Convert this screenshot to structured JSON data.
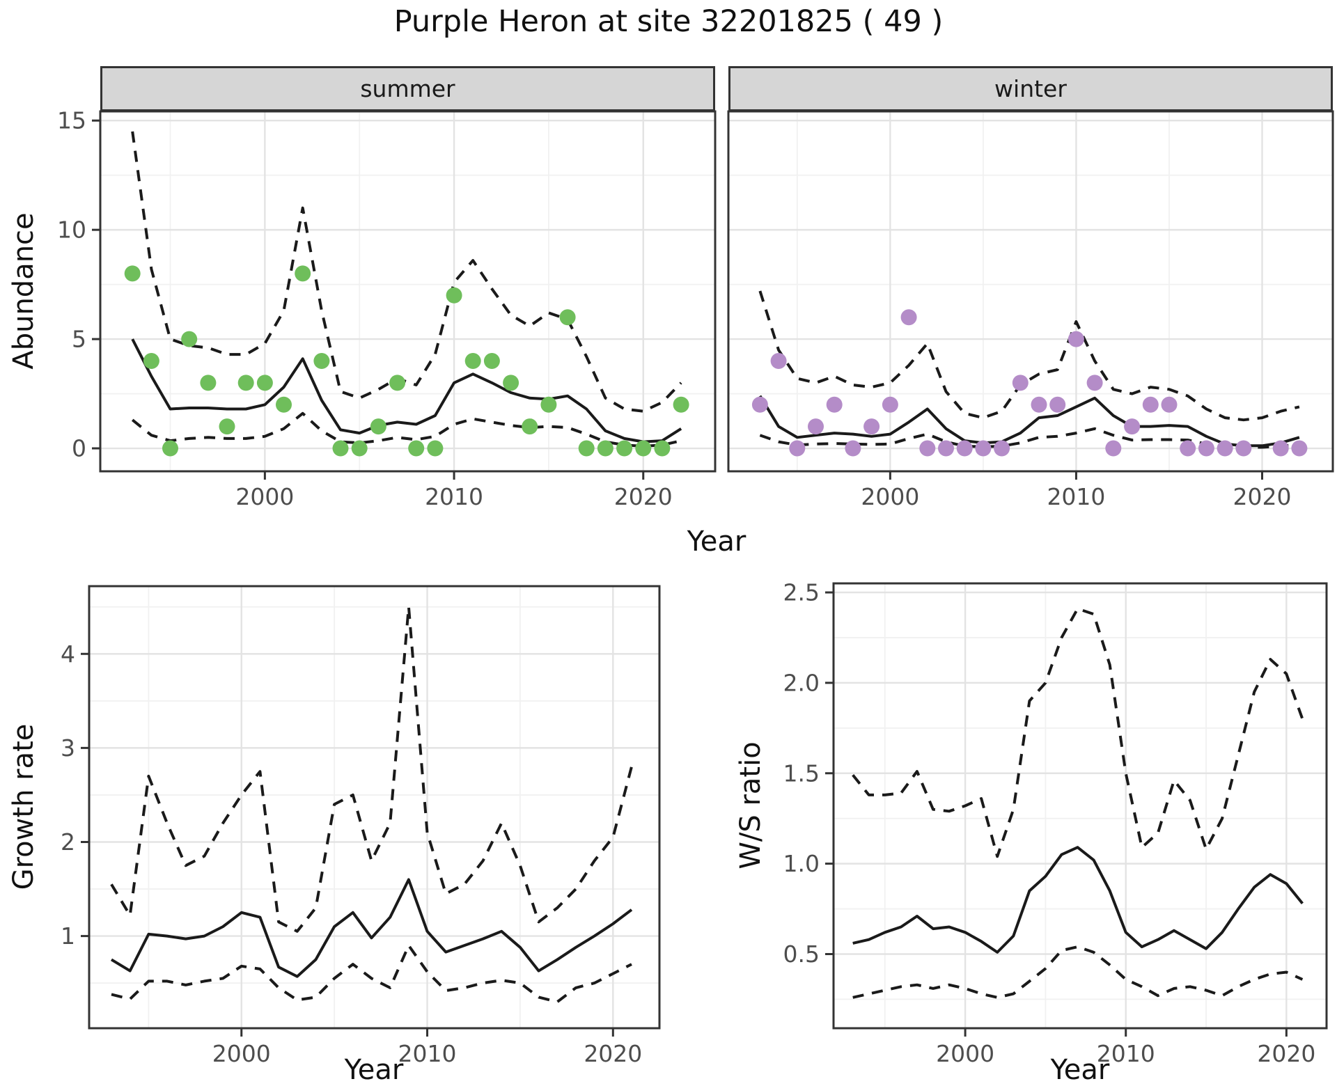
{
  "title": "Purple Heron at site 32201825 ( 49 )",
  "colors": {
    "summer_point": "#6fbe5b",
    "winter_point": "#b48cc8",
    "line": "#1a1a1a",
    "panel_border": "#333333",
    "strip_bg": "#d6d6d6",
    "grid_major": "#e3e3e3",
    "grid_minor": "#f1f1f1",
    "tick_label": "#4d4d4d"
  },
  "chart_data": {
    "type": "line",
    "title": "Purple Heron at site 32201825 ( 49 )",
    "legend": "none",
    "description": "Four-panel population model figure: observed counts (points), model fit (solid line) and 95% confidence band (dashed lines)",
    "panels": [
      {
        "id": "abundance-summer",
        "type": "line+scatter",
        "facet_label": "summer",
        "ylabel": "Abundance",
        "xlabel": "Year",
        "point_color": "#6fbe5b",
        "xlim": [
          1991.3,
          2023.8
        ],
        "ylim": [
          -1.05,
          15.42
        ],
        "xticks": [
          2000,
          2010,
          2020
        ],
        "xtick_labels": [
          "2000",
          "2010",
          "2020"
        ],
        "xminor": [
          1995,
          2005,
          2015
        ],
        "yticks": [
          0,
          5,
          10,
          15
        ],
        "ytick_labels": [
          "0",
          "5",
          "10",
          "15"
        ],
        "yminor": [
          2.5,
          7.5,
          12.5
        ],
        "years": [
          1993,
          1994,
          1995,
          1996,
          1997,
          1998,
          1999,
          2000,
          2001,
          2002,
          2003,
          2004,
          2005,
          2006,
          2007,
          2008,
          2009,
          2010,
          2011,
          2012,
          2013,
          2014,
          2015,
          2016,
          2017,
          2018,
          2019,
          2020,
          2021,
          2022
        ],
        "points": [
          8,
          4,
          0,
          5,
          3,
          1,
          3,
          3,
          2,
          8,
          4,
          0,
          0,
          1,
          3,
          0,
          0,
          7,
          4,
          4,
          3,
          1,
          2,
          6,
          0,
          0,
          0,
          0,
          0,
          2
        ],
        "fit": [
          5.0,
          3.3,
          1.8,
          1.85,
          1.85,
          1.8,
          1.8,
          2.0,
          2.8,
          4.1,
          2.2,
          0.85,
          0.7,
          1.05,
          1.2,
          1.1,
          1.5,
          3.0,
          3.4,
          3.0,
          2.55,
          2.3,
          2.25,
          2.4,
          1.8,
          0.8,
          0.45,
          0.3,
          0.35,
          0.9
        ],
        "upper": [
          14.5,
          8.2,
          5.0,
          4.7,
          4.6,
          4.3,
          4.3,
          4.8,
          6.3,
          11.0,
          6.3,
          2.6,
          2.3,
          2.7,
          3.2,
          2.9,
          4.3,
          7.6,
          8.6,
          7.3,
          6.1,
          5.6,
          6.2,
          5.9,
          4.2,
          2.3,
          1.8,
          1.7,
          2.1,
          3.0
        ],
        "lower": [
          1.3,
          0.6,
          0.35,
          0.45,
          0.5,
          0.45,
          0.45,
          0.55,
          0.9,
          1.6,
          0.8,
          0.3,
          0.25,
          0.35,
          0.5,
          0.4,
          0.55,
          1.1,
          1.35,
          1.2,
          1.05,
          0.95,
          1.0,
          0.95,
          0.65,
          0.3,
          0.15,
          0.1,
          0.15,
          0.35
        ]
      },
      {
        "id": "abundance-winter",
        "type": "line+scatter",
        "facet_label": "winter",
        "ylabel": "Abundance",
        "xlabel": "Year",
        "point_color": "#b48cc8",
        "xlim": [
          1991.3,
          2023.8
        ],
        "ylim": [
          -1.05,
          15.42
        ],
        "xticks": [
          2000,
          2010,
          2020
        ],
        "xtick_labels": [
          "2000",
          "2010",
          "2020"
        ],
        "xminor": [
          1995,
          2005,
          2015
        ],
        "yticks": [
          0,
          5,
          10,
          15
        ],
        "ytick_labels": [
          "0",
          "5",
          "10",
          "15"
        ],
        "yminor": [
          2.5,
          7.5,
          12.5
        ],
        "years": [
          1993,
          1994,
          1995,
          1996,
          1997,
          1998,
          1999,
          2000,
          2001,
          2002,
          2003,
          2004,
          2005,
          2006,
          2007,
          2008,
          2009,
          2010,
          2011,
          2012,
          2013,
          2014,
          2015,
          2016,
          2017,
          2018,
          2019,
          2020,
          2021,
          2022
        ],
        "points": [
          2,
          4,
          0,
          1,
          2,
          0,
          1,
          2,
          6,
          0,
          0,
          0,
          0,
          0,
          3,
          2,
          2,
          5,
          3,
          0,
          1,
          2,
          2,
          0,
          0,
          0,
          0,
          null,
          0,
          0
        ],
        "fit": [
          2.4,
          1.0,
          0.5,
          0.6,
          0.7,
          0.65,
          0.55,
          0.65,
          1.2,
          1.8,
          0.9,
          0.35,
          0.25,
          0.3,
          0.7,
          1.4,
          1.5,
          1.9,
          2.3,
          1.5,
          1.0,
          1.0,
          1.05,
          1.0,
          0.55,
          0.2,
          0.12,
          0.12,
          0.25,
          0.5
        ],
        "upper": [
          7.2,
          4.5,
          3.2,
          3.0,
          3.3,
          2.9,
          2.8,
          3.0,
          3.8,
          4.8,
          2.6,
          1.6,
          1.4,
          1.7,
          2.9,
          3.4,
          3.6,
          5.8,
          4.0,
          2.7,
          2.5,
          2.8,
          2.7,
          2.4,
          1.8,
          1.4,
          1.3,
          1.4,
          1.7,
          1.9
        ],
        "lower": [
          0.6,
          0.3,
          0.15,
          0.2,
          0.22,
          0.2,
          0.18,
          0.2,
          0.45,
          0.65,
          0.3,
          0.1,
          0.07,
          0.1,
          0.25,
          0.5,
          0.55,
          0.7,
          0.9,
          0.6,
          0.38,
          0.4,
          0.4,
          0.38,
          0.2,
          0.07,
          0.05,
          0.05,
          0.1,
          0.18
        ]
      },
      {
        "id": "growth-rate",
        "type": "line",
        "facet_label": "",
        "ylabel": "Growth rate",
        "xlabel": "Year",
        "xlim": [
          1991.8,
          2022.5
        ],
        "ylim": [
          0.02,
          4.72
        ],
        "xticks": [
          2000,
          2010,
          2020
        ],
        "xtick_labels": [
          "2000",
          "2010",
          "2020"
        ],
        "xminor": [
          1995,
          2005,
          2015
        ],
        "yticks": [
          1,
          2,
          3,
          4
        ],
        "ytick_labels": [
          "1",
          "2",
          "3",
          "4"
        ],
        "yminor": [
          0.5,
          1.5,
          2.5,
          3.5,
          4.5
        ],
        "years": [
          1993,
          1994,
          1995,
          1996,
          1997,
          1998,
          1999,
          2000,
          2001,
          2002,
          2003,
          2004,
          2005,
          2006,
          2007,
          2008,
          2009,
          2010,
          2011,
          2012,
          2013,
          2014,
          2015,
          2016,
          2017,
          2018,
          2019,
          2020,
          2021
        ],
        "fit": [
          0.75,
          0.63,
          1.02,
          1.0,
          0.97,
          1.0,
          1.1,
          1.25,
          1.2,
          0.67,
          0.57,
          0.75,
          1.1,
          1.25,
          0.98,
          1.2,
          1.6,
          1.05,
          0.83,
          0.9,
          0.97,
          1.05,
          0.88,
          0.63,
          0.75,
          0.88,
          1.0,
          1.13,
          1.28
        ],
        "upper": [
          1.55,
          1.22,
          2.7,
          2.2,
          1.75,
          1.85,
          2.2,
          2.5,
          2.75,
          1.15,
          1.05,
          1.3,
          2.4,
          2.5,
          1.8,
          2.2,
          4.5,
          2.1,
          1.45,
          1.55,
          1.8,
          2.2,
          1.75,
          1.15,
          1.3,
          1.5,
          1.8,
          2.05,
          2.8
        ],
        "lower": [
          0.38,
          0.33,
          0.52,
          0.52,
          0.48,
          0.52,
          0.55,
          0.68,
          0.65,
          0.45,
          0.32,
          0.35,
          0.55,
          0.7,
          0.55,
          0.45,
          0.9,
          0.62,
          0.42,
          0.45,
          0.5,
          0.53,
          0.5,
          0.35,
          0.3,
          0.45,
          0.5,
          0.6,
          0.7
        ]
      },
      {
        "id": "ws-ratio",
        "type": "line",
        "facet_label": "",
        "ylabel": "W/S ratio",
        "xlabel": "Year",
        "xlim": [
          1991.8,
          2022.5
        ],
        "ylim": [
          0.09,
          2.55
        ],
        "xticks": [
          2000,
          2010,
          2020
        ],
        "xtick_labels": [
          "2000",
          "2010",
          "2020"
        ],
        "xminor": [
          1995,
          2005,
          2015
        ],
        "yticks": [
          0.5,
          1.0,
          1.5,
          2.0,
          2.5
        ],
        "ytick_labels": [
          "0.5",
          "1.0",
          "1.5",
          "2.0",
          "2.5"
        ],
        "yminor": [
          0.25,
          0.75,
          1.25,
          1.75,
          2.25
        ],
        "years": [
          1993,
          1994,
          1995,
          1996,
          1997,
          1998,
          1999,
          2000,
          2001,
          2002,
          2003,
          2004,
          2005,
          2006,
          2007,
          2008,
          2009,
          2010,
          2011,
          2012,
          2013,
          2014,
          2015,
          2016,
          2017,
          2018,
          2019,
          2020,
          2021
        ],
        "fit": [
          0.56,
          0.58,
          0.62,
          0.65,
          0.71,
          0.64,
          0.65,
          0.62,
          0.57,
          0.51,
          0.6,
          0.85,
          0.93,
          1.05,
          1.09,
          1.02,
          0.85,
          0.62,
          0.54,
          0.58,
          0.63,
          0.58,
          0.53,
          0.62,
          0.75,
          0.87,
          0.94,
          0.89,
          0.78
        ],
        "upper": [
          1.49,
          1.38,
          1.38,
          1.39,
          1.51,
          1.3,
          1.29,
          1.32,
          1.36,
          1.04,
          1.3,
          1.9,
          2.0,
          2.25,
          2.41,
          2.38,
          2.1,
          1.5,
          1.09,
          1.17,
          1.46,
          1.35,
          1.08,
          1.25,
          1.6,
          1.95,
          2.13,
          2.05,
          1.8
        ],
        "lower": [
          0.26,
          0.28,
          0.3,
          0.32,
          0.33,
          0.31,
          0.33,
          0.31,
          0.28,
          0.26,
          0.28,
          0.35,
          0.42,
          0.52,
          0.54,
          0.51,
          0.44,
          0.36,
          0.32,
          0.27,
          0.31,
          0.32,
          0.3,
          0.27,
          0.32,
          0.36,
          0.39,
          0.4,
          0.36
        ]
      }
    ]
  }
}
